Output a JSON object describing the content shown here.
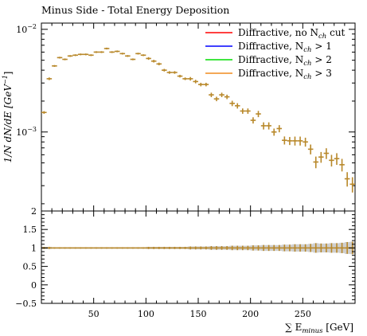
{
  "chart_data": [
    {
      "type": "scatter",
      "title": "Minus Side - Total Energy Deposition",
      "ylabel": "1/N dN/dE [GeV^-1]",
      "xlabel": "",
      "x_range": [
        0,
        300
      ],
      "y_range": [
        0.00017,
        0.0115
      ],
      "y_scale": "log",
      "y_ticks": [
        {
          "value": 0.001,
          "base": "10",
          "exp": "−3"
        },
        {
          "value": 0.01,
          "base": "10",
          "exp": "−2"
        }
      ],
      "legend_position": "top-right",
      "legend": [
        {
          "label": "Diffractive, no N",
          "sub": "ch",
          "tail": " cut",
          "color": "#ff0000"
        },
        {
          "label": "Diffractive, N",
          "sub": "ch",
          "tail": " > 1",
          "color": "#0000ff"
        },
        {
          "label": "Diffractive, N",
          "sub": "ch",
          "tail": " > 2",
          "color": "#00dd00"
        },
        {
          "label": "Diffractive, N",
          "sub": "ch",
          "tail": " > 3",
          "color": "#f08c1e"
        }
      ],
      "marker_color": "#b8882a",
      "bin_width": 5,
      "x": [
        2.5,
        7.5,
        12.5,
        17.5,
        22.5,
        27.5,
        32.5,
        37.5,
        42.5,
        47.5,
        52.5,
        57.5,
        62.5,
        67.5,
        72.5,
        77.5,
        82.5,
        87.5,
        92.5,
        97.5,
        102.5,
        107.5,
        112.5,
        117.5,
        122.5,
        127.5,
        132.5,
        137.5,
        142.5,
        147.5,
        152.5,
        157.5,
        162.5,
        167.5,
        172.5,
        177.5,
        182.5,
        187.5,
        192.5,
        197.5,
        202.5,
        207.5,
        212.5,
        217.5,
        222.5,
        227.5,
        232.5,
        237.5,
        242.5,
        247.5,
        252.5,
        257.5,
        262.5,
        267.5,
        272.5,
        277.5,
        282.5,
        287.5,
        292.5,
        297.5
      ],
      "y": [
        0.00155,
        0.0033,
        0.0044,
        0.0053,
        0.0051,
        0.0055,
        0.0056,
        0.0057,
        0.0057,
        0.0056,
        0.006,
        0.006,
        0.0065,
        0.006,
        0.0061,
        0.0058,
        0.0055,
        0.0051,
        0.0058,
        0.0056,
        0.0052,
        0.0049,
        0.0046,
        0.004,
        0.0038,
        0.0038,
        0.0035,
        0.0033,
        0.0033,
        0.0031,
        0.0029,
        0.0029,
        0.0023,
        0.0021,
        0.0023,
        0.0022,
        0.0019,
        0.0018,
        0.0016,
        0.0016,
        0.0013,
        0.0015,
        0.00115,
        0.00115,
        0.001,
        0.00108,
        0.00083,
        0.00082,
        0.00082,
        0.00082,
        0.0008,
        0.00068,
        0.00051,
        0.00057,
        0.00062,
        0.00053,
        0.00055,
        0.00048,
        0.00035,
        0.00031
      ],
      "yerr_frac": [
        0.03,
        0.03,
        0.02,
        0.02,
        0.02,
        0.02,
        0.02,
        0.02,
        0.02,
        0.02,
        0.02,
        0.02,
        0.02,
        0.02,
        0.02,
        0.02,
        0.02,
        0.02,
        0.02,
        0.02,
        0.03,
        0.03,
        0.03,
        0.03,
        0.03,
        0.03,
        0.03,
        0.03,
        0.04,
        0.04,
        0.04,
        0.04,
        0.05,
        0.05,
        0.05,
        0.05,
        0.06,
        0.06,
        0.06,
        0.06,
        0.07,
        0.07,
        0.08,
        0.08,
        0.08,
        0.08,
        0.09,
        0.09,
        0.1,
        0.1,
        0.1,
        0.11,
        0.13,
        0.12,
        0.12,
        0.13,
        0.13,
        0.14,
        0.16,
        0.17
      ]
    },
    {
      "type": "scatter",
      "title": "",
      "xlabel": "∑ E_minus [GeV]",
      "xlabel_parts": {
        "sum": "∑ E",
        "sub": "minus",
        "unit": " [GeV]"
      },
      "ylabel": "",
      "x_range": [
        0,
        300
      ],
      "y_range": [
        -0.5,
        2
      ],
      "x_ticks": [
        50,
        100,
        150,
        200,
        250
      ],
      "y_ticks": [
        -0.5,
        0,
        0.5,
        1,
        1.5,
        2
      ],
      "y_tick_labels": [
        "−0.5",
        "0",
        "0.5",
        "1",
        "1.5",
        "2"
      ],
      "ratio_value": 1,
      "band_color": "#cfcfcf"
    }
  ]
}
